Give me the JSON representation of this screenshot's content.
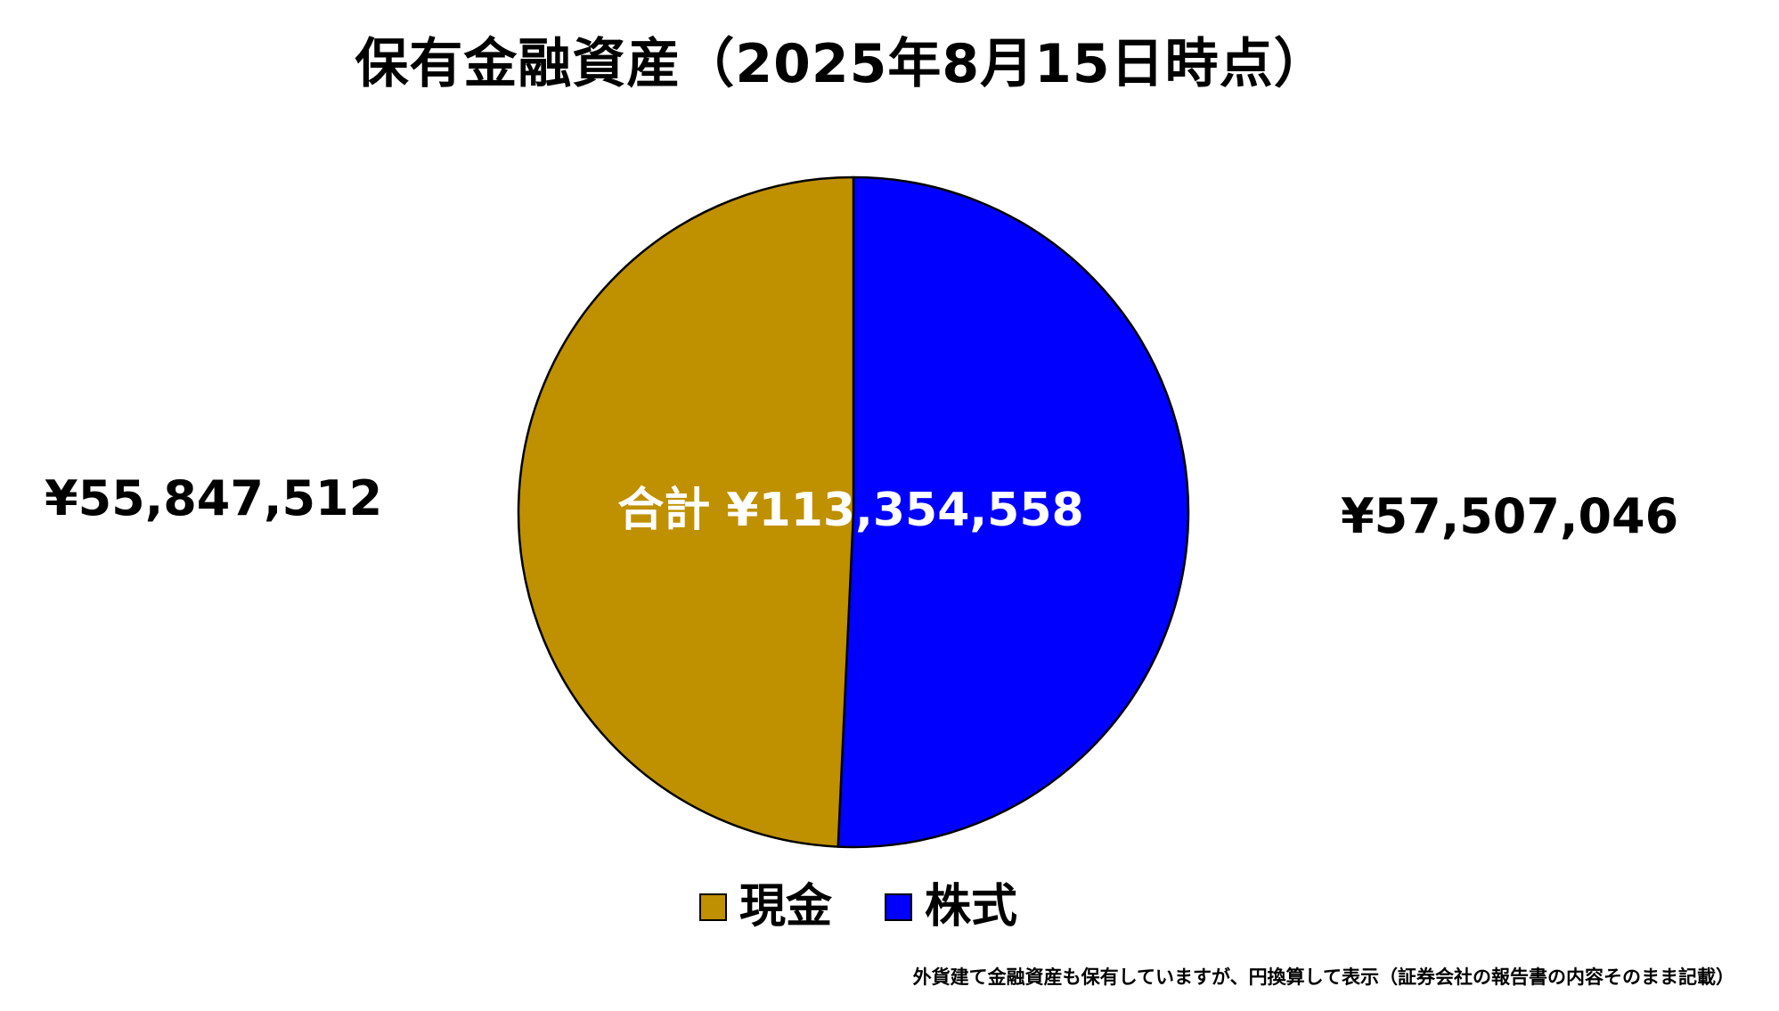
{
  "title": "保有金融資産（2025年8月15日時点）",
  "chart_data": {
    "type": "pie",
    "title": "保有金融資産（2025年8月15日時点）",
    "slices": [
      {
        "name": "現金",
        "value": 55847512,
        "value_label": "¥55,847,512",
        "color": "#bf9000"
      },
      {
        "name": "株式",
        "value": 57507046,
        "value_label": "¥57,507,046",
        "color": "#0000ff"
      }
    ],
    "total_label": "合計 ¥113,354,558",
    "legend_position": "bottom"
  },
  "footnote": "外貨建て金融資産も保有していますが、円換算して表示（証券会社の報告書の内容そのまま記載）"
}
